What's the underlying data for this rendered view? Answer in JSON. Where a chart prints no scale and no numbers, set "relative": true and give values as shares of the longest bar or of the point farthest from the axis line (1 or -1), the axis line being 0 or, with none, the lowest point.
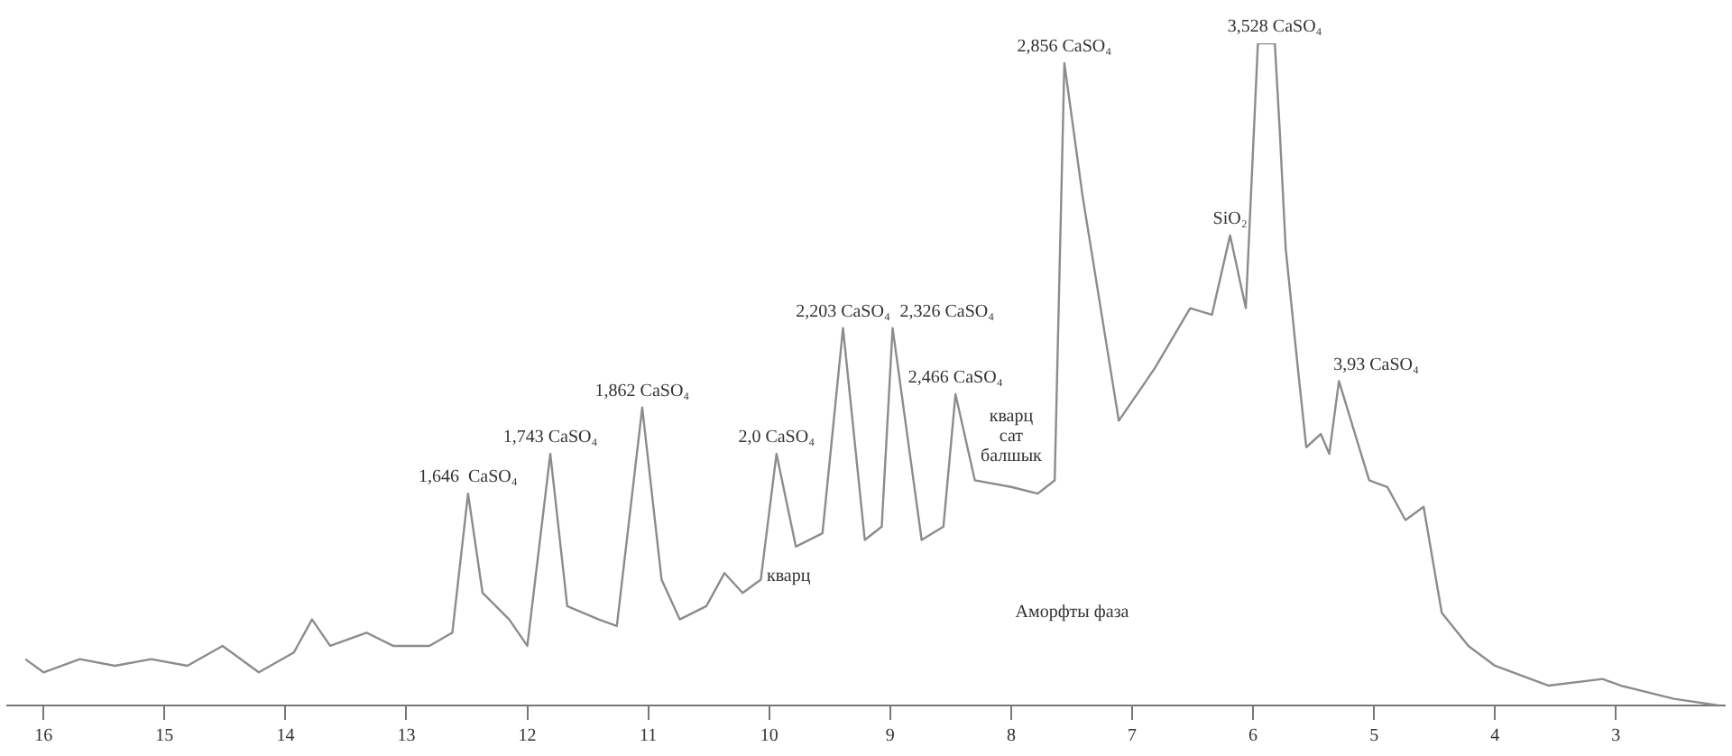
{
  "chart_data": {
    "type": "line",
    "relative": true,
    "color": "#8c8c8c",
    "marker": "none",
    "line_style": "solid",
    "grid": false,
    "legend": false,
    "xlim": [
      16.3,
      2.1
    ],
    "xticks": [
      16,
      15,
      14,
      13,
      12,
      11,
      10,
      9,
      8,
      7,
      6,
      5,
      4,
      3
    ],
    "x": [
      16.15,
      16.0,
      15.7,
      15.41,
      15.11,
      14.81,
      14.52,
      14.22,
      13.93,
      13.78,
      13.63,
      13.33,
      13.11,
      12.81,
      12.62,
      12.49,
      12.37,
      12.15,
      12.0,
      11.81,
      11.67,
      11.41,
      11.26,
      11.05,
      10.89,
      10.74,
      10.52,
      10.37,
      10.22,
      10.07,
      9.94,
      9.78,
      9.56,
      9.39,
      9.21,
      9.07,
      8.98,
      8.74,
      8.56,
      8.46,
      8.3,
      8.0,
      7.78,
      7.64,
      7.56,
      7.41,
      7.11,
      6.81,
      6.52,
      6.34,
      6.19,
      6.06,
      5.96,
      5.82,
      5.78,
      5.73,
      5.63,
      5.56,
      5.44,
      5.37,
      5.29,
      5.04,
      4.89,
      4.74,
      4.59,
      4.44,
      4.22,
      4.0,
      3.56,
      3.11,
      2.96,
      2.52,
      2.15
    ],
    "values": [
      0.07,
      0.05,
      0.07,
      0.06,
      0.07,
      0.06,
      0.09,
      0.05,
      0.08,
      0.13,
      0.09,
      0.11,
      0.09,
      0.09,
      0.11,
      0.32,
      0.17,
      0.13,
      0.09,
      0.38,
      0.15,
      0.13,
      0.12,
      0.45,
      0.19,
      0.13,
      0.15,
      0.2,
      0.17,
      0.19,
      0.38,
      0.24,
      0.26,
      0.57,
      0.25,
      0.27,
      0.57,
      0.25,
      0.27,
      0.47,
      0.34,
      0.33,
      0.32,
      0.34,
      0.97,
      0.77,
      0.43,
      0.51,
      0.6,
      0.59,
      0.71,
      0.6,
      1.0,
      1.0,
      0.87,
      0.69,
      0.51,
      0.39,
      0.41,
      0.38,
      0.49,
      0.34,
      0.33,
      0.28,
      0.3,
      0.14,
      0.09,
      0.06,
      0.03,
      0.04,
      0.03,
      0.01,
      0.0
    ],
    "annotations": [
      {
        "text": "1,646  CaSO₄",
        "x": 12.49,
        "y": 0.32
      },
      {
        "text": "1,743 CaSO₄",
        "x": 11.81,
        "y": 0.38
      },
      {
        "text": "1,862 CaSO₄",
        "x": 11.05,
        "y": 0.45
      },
      {
        "text": "кварц",
        "x": 10.2,
        "y": 0.17
      },
      {
        "text": "2,0 CaSO₄",
        "x": 9.94,
        "y": 0.38
      },
      {
        "text": "2,203 CaSO₄",
        "x": 9.39,
        "y": 0.57
      },
      {
        "text": "2,326 CaSO₄",
        "x": 8.98,
        "y": 0.57
      },
      {
        "text": "2,466 CaSO₄",
        "x": 8.46,
        "y": 0.47
      },
      {
        "text": "кварц сат балшык",
        "x": 8.0,
        "y": 0.33
      },
      {
        "text": "2,856 CaSO₄",
        "x": 7.56,
        "y": 0.97
      },
      {
        "text": "SiO₂",
        "x": 6.19,
        "y": 0.71
      },
      {
        "text": "3,528 CaSO₄",
        "x": 5.82,
        "y": 1.0
      },
      {
        "text": "3,93 CaSO₄",
        "x": 5.29,
        "y": 0.49
      },
      "Аморфты фаза"
    ]
  }
}
